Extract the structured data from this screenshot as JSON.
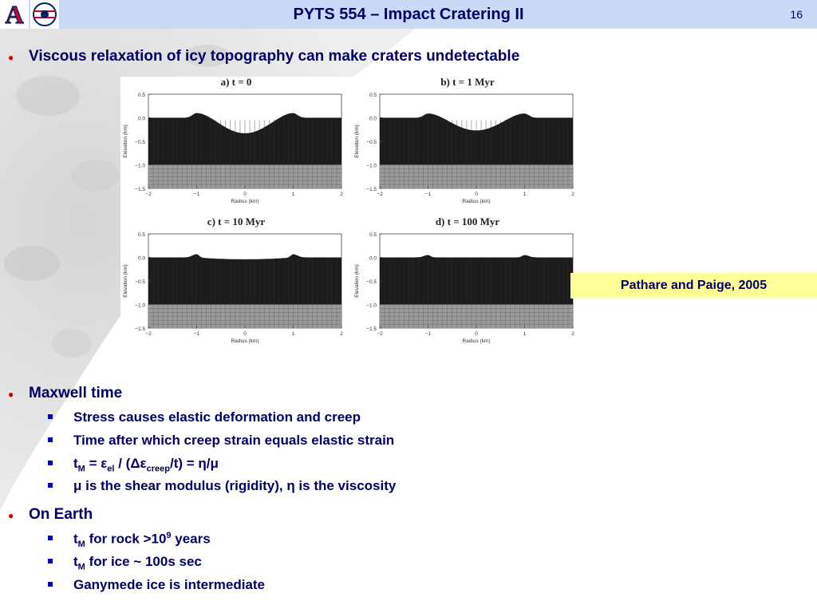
{
  "header": {
    "title": "PYTS 554 – Impact Cratering II",
    "slide_number": "16",
    "logo_letter": "A"
  },
  "bullets": [
    {
      "text": "Viscous relaxation of icy topography can make craters undetectable"
    },
    {
      "text": "Maxwell time",
      "subs": [
        "Stress causes elastic deformation and creep",
        "Time after which creep strain equals elastic strain",
        "μ is the shear modulus (rigidity), η is the viscosity"
      ]
    },
    {
      "text": "On Earth",
      "subs": [
        "Ganymede ice is intermediate"
      ]
    }
  ],
  "formula": {
    "t": "t",
    "M": "M",
    "eq": " = ε",
    "el": "el",
    "slash": " / (Δε",
    "creep": "creep",
    "tail": "/t) = η/μ"
  },
  "earth_rock": {
    "t": "t",
    "M": "M",
    "a": " for rock >10",
    "exp": "9",
    "b": " years"
  },
  "earth_ice": {
    "t": "t",
    "M": "M",
    "a": " for ice ~ 100s sec"
  },
  "figure": {
    "panels": [
      {
        "title": "a) t = 0",
        "depth": 0.33,
        "rim_height": 0.1
      },
      {
        "title": "b) t = 1 Myr",
        "depth": 0.27,
        "rim_height": 0.09
      },
      {
        "title": "c) t = 10 Myr",
        "depth": 0.04,
        "rim_height": 0.07
      },
      {
        "title": "d) t = 100 Myr",
        "depth": 0.0,
        "rim_height": 0.05
      }
    ],
    "y_ticks": [
      "0.5",
      "0.0",
      "−0.5",
      "−1.0",
      "−1.5"
    ],
    "x_ticks": [
      "−2",
      "−1",
      "0",
      "1",
      "2"
    ],
    "ylabel": "Elevation (km)",
    "xlabel": "Radius (km)"
  },
  "citation": "Pathare and Paige, 2005"
}
